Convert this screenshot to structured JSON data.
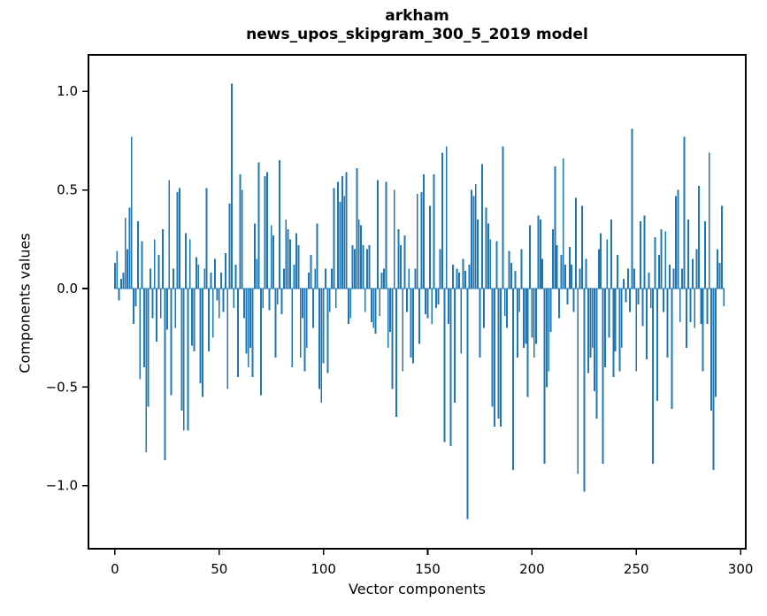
{
  "figure": {
    "background": "#ffffff"
  },
  "chart_data": {
    "type": "bar",
    "title_line1": "arkham",
    "title_line2": "news_upos_skipgram_300_5_2019 model",
    "xlabel": "Vector components",
    "ylabel": "Components values",
    "bar_color": "#1f77b4",
    "axis_color": "#000000",
    "grid": false,
    "xlim": [
      -12.7,
      302.5
    ],
    "ylim": [
      -1.32,
      1.185
    ],
    "xticks": [
      0,
      50,
      100,
      150,
      200,
      250,
      300
    ],
    "yticks": [
      1.0,
      0.5,
      0.0,
      -0.5,
      -1.0
    ],
    "n_components": 300,
    "values": [
      0.13,
      0.19,
      -0.06,
      0.05,
      0.08,
      0.36,
      0.2,
      0.41,
      0.77,
      -0.18,
      -0.09,
      0.34,
      -0.46,
      0.24,
      -0.4,
      -0.83,
      -0.6,
      0.1,
      -0.15,
      0.25,
      -0.27,
      0.17,
      -0.15,
      0.3,
      -0.87,
      -0.21,
      0.55,
      -0.54,
      0.1,
      -0.2,
      0.49,
      0.51,
      -0.62,
      -0.72,
      0.28,
      -0.72,
      0.25,
      -0.29,
      -0.32,
      0.16,
      0.12,
      -0.48,
      -0.55,
      0.1,
      0.51,
      -0.32,
      0.08,
      -0.25,
      0.15,
      -0.06,
      -0.15,
      0.08,
      -0.12,
      0.18,
      -0.51,
      0.43,
      1.04,
      -0.1,
      0.12,
      -0.45,
      0.58,
      0.5,
      -0.15,
      -0.33,
      -0.4,
      -0.3,
      -0.45,
      0.33,
      0.15,
      0.64,
      -0.54,
      -0.1,
      0.57,
      0.59,
      -0.11,
      0.32,
      0.27,
      -0.35,
      -0.08,
      0.65,
      -0.13,
      0.1,
      0.35,
      0.3,
      0.25,
      -0.4,
      0.12,
      0.28,
      0.22,
      -0.35,
      -0.15,
      -0.42,
      -0.3,
      0.08,
      0.17,
      -0.2,
      0.1,
      0.33,
      -0.51,
      -0.58,
      -0.38,
      0.1,
      -0.43,
      -0.12,
      0.1,
      0.51,
      -0.1,
      0.54,
      0.44,
      0.57,
      0.47,
      0.59,
      -0.18,
      -0.15,
      0.22,
      0.2,
      0.61,
      0.35,
      0.32,
      0.22,
      -0.12,
      0.2,
      0.22,
      -0.17,
      -0.2,
      -0.23,
      0.55,
      -0.14,
      0.08,
      0.1,
      0.54,
      -0.3,
      -0.22,
      -0.51,
      0.5,
      -0.65,
      0.3,
      0.22,
      -0.42,
      0.27,
      -0.12,
      0.1,
      -0.35,
      -0.38,
      0.1,
      0.48,
      -0.28,
      0.49,
      0.58,
      -0.13,
      -0.15,
      0.42,
      -0.18,
      0.58,
      -0.1,
      -0.08,
      0.2,
      0.69,
      -0.78,
      0.72,
      -0.18,
      -0.8,
      0.12,
      -0.58,
      0.1,
      0.08,
      -0.33,
      0.15,
      0.09,
      -1.17,
      0.12,
      0.5,
      0.47,
      0.53,
      0.35,
      -0.35,
      0.63,
      -0.2,
      0.41,
      0.33,
      0.25,
      -0.6,
      -0.7,
      0.24,
      -0.66,
      -0.7,
      0.72,
      -0.14,
      -0.2,
      0.19,
      0.13,
      -0.92,
      0.09,
      -0.35,
      -0.12,
      0.2,
      -0.3,
      -0.28,
      -0.55,
      0.32,
      -0.25,
      -0.35,
      -0.28,
      0.37,
      0.35,
      0.15,
      -0.89,
      -0.5,
      -0.42,
      -0.22,
      0.3,
      0.62,
      0.22,
      -0.15,
      0.17,
      0.66,
      0.12,
      -0.08,
      0.21,
      0.12,
      -0.12,
      0.46,
      -0.94,
      0.1,
      0.42,
      -1.03,
      0.15,
      -0.43,
      -0.35,
      -0.3,
      -0.52,
      -0.66,
      0.2,
      0.28,
      -0.89,
      -0.4,
      0.25,
      -0.25,
      0.35,
      -0.45,
      -0.32,
      0.17,
      -0.42,
      -0.3,
      0.05,
      -0.07,
      0.1,
      -0.12,
      0.81,
      0.1,
      -0.42,
      -0.08,
      0.34,
      -0.19,
      0.37,
      -0.36,
      0.08,
      -0.1,
      -0.89,
      0.26,
      -0.57,
      0.17,
      0.3,
      -0.12,
      0.29,
      -0.35,
      0.12,
      -0.61,
      0.1,
      0.47,
      0.5,
      -0.17,
      0.1,
      0.77,
      -0.3,
      0.35,
      -0.17,
      0.15,
      -0.2,
      0.2,
      0.52,
      -0.18,
      -0.42,
      0.34,
      -0.18,
      0.69,
      -0.62,
      -0.92,
      -0.55,
      0.2,
      0.13,
      0.42,
      -0.09,
      0.0,
      0.0,
      0.0,
      0.0,
      0.0,
      0.0,
      0.0
    ]
  }
}
